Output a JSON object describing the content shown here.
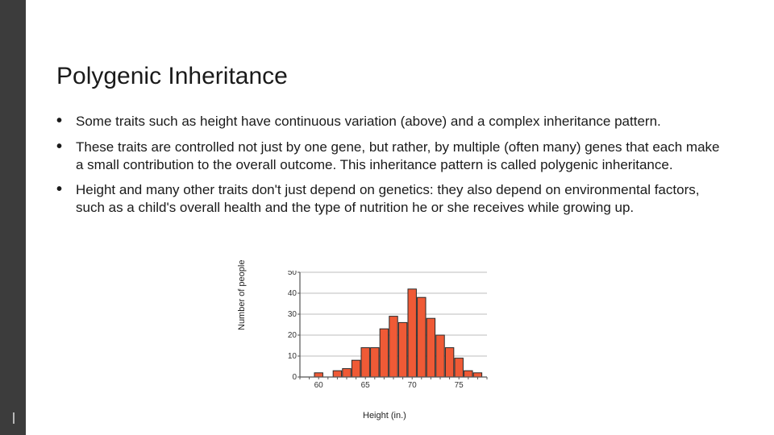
{
  "title": "Polygenic Inheritance",
  "bullets": [
    "Some traits such as height have continuous variation (above) and a complex inheritance pattern.",
    "These traits are controlled not just by one gene, but rather, by multiple (often many) genes that each make a small contribution to the overall outcome. This inheritance pattern is called polygenic inheritance.",
    "Height and many other traits don't just depend on genetics: they also depend on environmental factors, such as a child's overall health and the type of nutrition he or she receives while growing up."
  ],
  "chart": {
    "type": "bar",
    "ylabel": "Number of people",
    "xlabel": "Height (in.)",
    "ylim": [
      0,
      50
    ],
    "ytick_step": 10,
    "xlim": [
      58,
      78
    ],
    "xtick_labels": [
      60,
      65,
      70,
      75
    ],
    "categories": [
      59,
      60,
      61,
      62,
      63,
      64,
      65,
      66,
      67,
      68,
      69,
      70,
      71,
      72,
      73,
      74,
      75,
      76,
      77
    ],
    "values": [
      0,
      2,
      0,
      3,
      4,
      8,
      14,
      14,
      23,
      29,
      26,
      42,
      38,
      28,
      20,
      14,
      9,
      3,
      2
    ],
    "bar_fill": "#ef5a36",
    "bar_stroke": "#2a2a2a",
    "grid_color": "#bdbdbd",
    "axis_color": "#555555",
    "background_color": "#ffffff",
    "bar_width": 0.9,
    "label_fontsize": 11,
    "tick_fontsize": 10
  },
  "side_stripe_color": "#3c3c3c"
}
